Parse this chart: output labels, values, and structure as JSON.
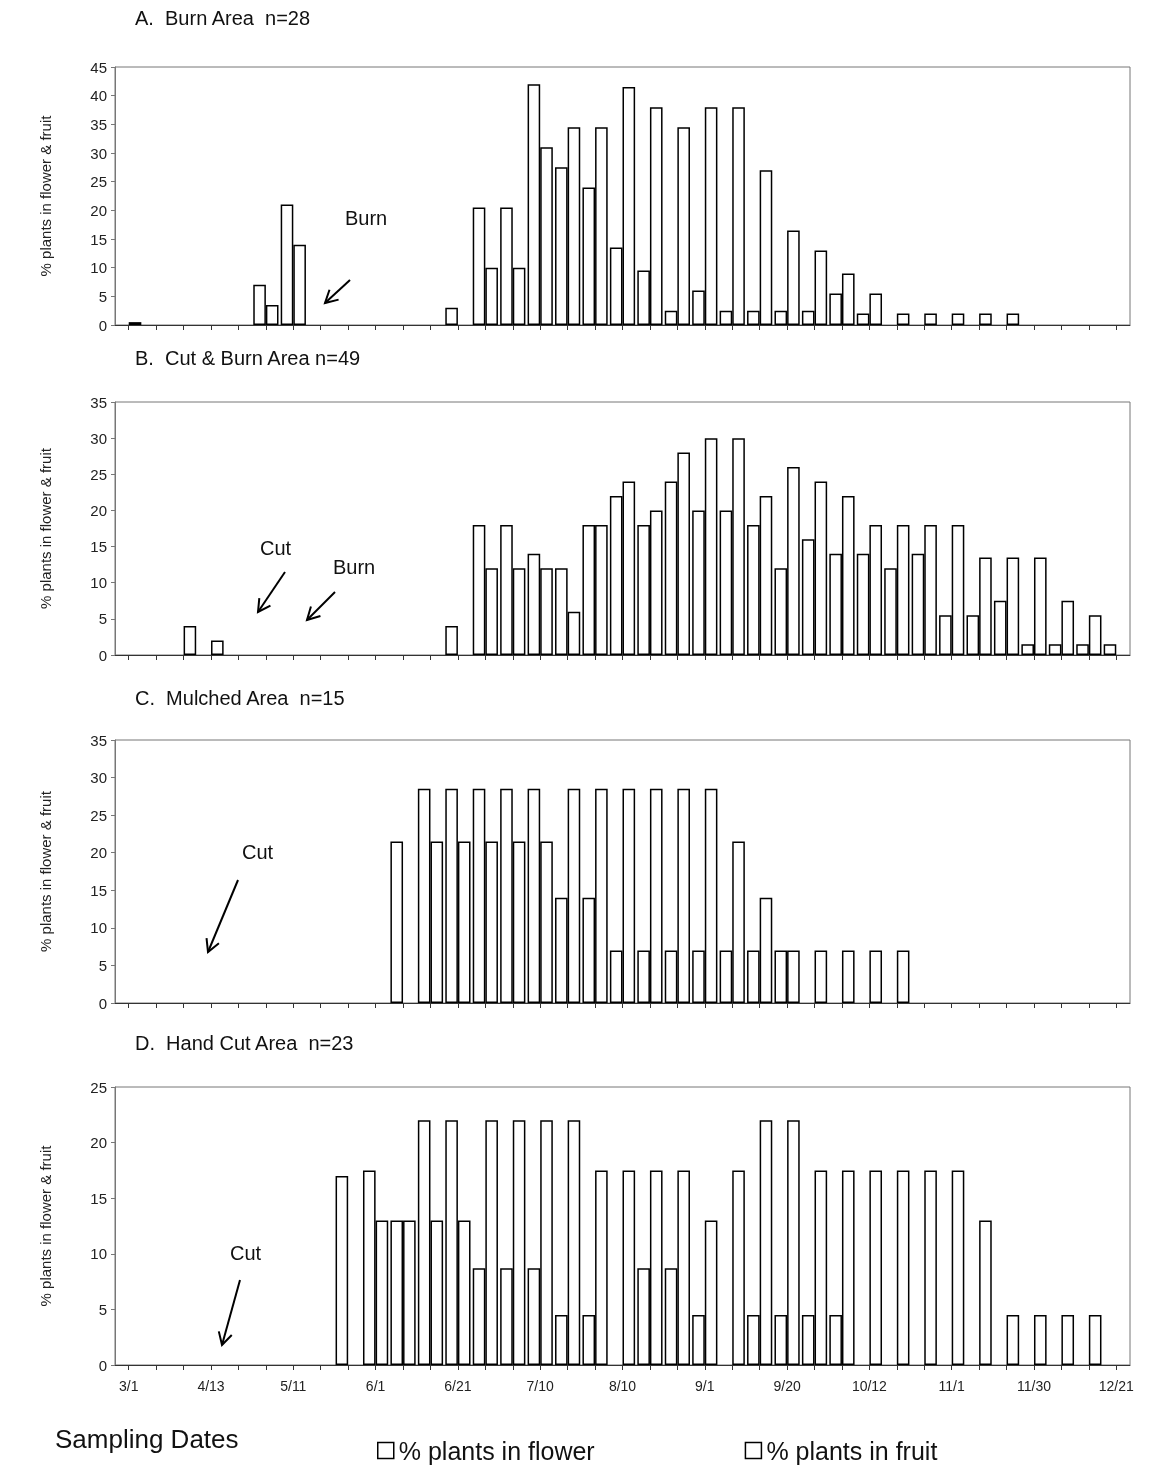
{
  "chart_data": [
    {
      "type": "bar",
      "title": "A.  Burn Area  n=28",
      "ylabel": "% plants in flower & fruit",
      "categories": [
        null,
        null,
        null,
        null,
        null,
        null,
        null,
        null,
        null,
        null,
        null,
        null,
        null,
        null,
        null,
        null,
        null,
        null,
        null,
        null,
        null,
        null,
        null,
        null,
        null,
        null,
        null,
        null,
        null,
        null,
        null,
        null,
        null,
        null,
        null,
        null,
        null
      ],
      "series": [
        {
          "color": "#ffffff",
          "values": [
            null,
            null,
            null,
            null,
            null,
            7,
            21,
            null,
            null,
            null,
            null,
            null,
            3,
            20.5,
            20.5,
            42,
            27.5,
            24,
            13.5,
            9.5,
            2.5,
            6,
            2.5,
            2.5,
            2.5,
            2.5,
            5.5,
            2,
            null,
            null,
            null,
            null,
            null,
            null,
            null,
            null,
            null
          ]
        },
        {
          "color": "#ffffff",
          "values": [
            0.5,
            null,
            null,
            null,
            null,
            3.5,
            14,
            null,
            null,
            null,
            null,
            null,
            null,
            10,
            10,
            31,
            34.5,
            34.5,
            41.5,
            38,
            34.5,
            38,
            38,
            27,
            16.5,
            13,
            9,
            5.5,
            2,
            2,
            2,
            2,
            2,
            null,
            null,
            null,
            null
          ]
        }
      ],
      "ylim": [
        0,
        45
      ],
      "yticks": [
        0,
        5,
        10,
        15,
        20,
        25,
        30,
        35,
        40,
        45
      ],
      "grid": false,
      "legend": false,
      "tick_labels": "y",
      "annotations": [
        "Burn"
      ]
    },
    {
      "type": "bar",
      "title": "B.  Cut & Burn Area n=49",
      "ylabel": "% plants in flower & fruit",
      "categories": [
        null,
        null,
        null,
        null,
        null,
        null,
        null,
        null,
        null,
        null,
        null,
        null,
        null,
        null,
        null,
        null,
        null,
        null,
        null,
        null,
        null,
        null,
        null,
        null,
        null,
        null,
        null,
        null,
        null,
        null,
        null,
        null,
        null,
        null,
        null,
        null,
        null
      ],
      "series": [
        {
          "color": "#ffffff",
          "values": [
            null,
            null,
            null,
            null,
            null,
            null,
            null,
            null,
            null,
            null,
            null,
            null,
            4,
            18,
            18,
            14,
            12,
            18,
            22,
            18,
            24,
            20,
            20,
            18,
            12,
            16,
            14,
            14,
            12,
            14,
            5.5,
            5.5,
            7.5,
            1.5,
            1.5,
            1.5,
            1.5
          ]
        },
        {
          "color": "#ffffff",
          "values": [
            null,
            null,
            4,
            2,
            null,
            null,
            null,
            null,
            null,
            null,
            null,
            null,
            null,
            12,
            12,
            12,
            6,
            18,
            24,
            20,
            28,
            30,
            30,
            22,
            26,
            24,
            22,
            18,
            18,
            18,
            18,
            13.5,
            13.5,
            13.5,
            7.5,
            5.5,
            null
          ]
        }
      ],
      "ylim": [
        0,
        35
      ],
      "yticks": [
        0,
        5,
        10,
        15,
        20,
        25,
        30,
        35
      ],
      "grid": false,
      "legend": false,
      "tick_labels": "y",
      "annotations": [
        "Cut",
        "Burn"
      ]
    },
    {
      "type": "bar",
      "title": "C.  Mulched Area  n=15",
      "ylabel": "% plants in flower & fruit",
      "categories": [
        null,
        null,
        null,
        null,
        null,
        null,
        null,
        null,
        null,
        null,
        null,
        null,
        null,
        null,
        null,
        null,
        null,
        null,
        null,
        null,
        null,
        null,
        null,
        null,
        null,
        null,
        null,
        null,
        null,
        null,
        null,
        null,
        null,
        null,
        null,
        null,
        null
      ],
      "series": [
        {
          "color": "#ffffff",
          "values": [
            null,
            null,
            null,
            null,
            null,
            null,
            null,
            null,
            null,
            null,
            21.5,
            28.5,
            28.5,
            28.5,
            28.5,
            28.5,
            14,
            14,
            7,
            7,
            7,
            7,
            7,
            7,
            7,
            null,
            null,
            null,
            null,
            null,
            null,
            null,
            null,
            null,
            null,
            null,
            null
          ]
        },
        {
          "color": "#ffffff",
          "values": [
            null,
            null,
            null,
            null,
            null,
            null,
            null,
            null,
            null,
            null,
            null,
            21.5,
            21.5,
            21.5,
            21.5,
            21.5,
            28.5,
            28.5,
            28.5,
            28.5,
            28.5,
            28.5,
            21.5,
            14,
            7,
            7,
            7,
            7,
            7,
            null,
            null,
            null,
            null,
            null,
            null,
            null,
            null
          ]
        }
      ],
      "ylim": [
        0,
        35
      ],
      "yticks": [
        0,
        5,
        10,
        15,
        20,
        25,
        30,
        35
      ],
      "grid": false,
      "legend": false,
      "tick_labels": "y",
      "annotations": [
        "Cut"
      ]
    },
    {
      "type": "bar",
      "title": "D.  Hand Cut Area  n=23",
      "ylabel": "% plants in flower & fruit",
      "xlabel": "Sampling Dates",
      "categories": [
        "3/1",
        null,
        null,
        "4/13",
        null,
        null,
        "5/11",
        null,
        null,
        "6/1",
        null,
        null,
        "6/21",
        null,
        null,
        "7/10",
        null,
        null,
        "8/10",
        null,
        null,
        "9/1",
        null,
        null,
        "9/20",
        null,
        null,
        "10/12",
        null,
        null,
        "11/1",
        null,
        null,
        "11/30",
        null,
        null,
        "12/21"
      ],
      "series": [
        {
          "name": "% plants in flower",
          "color": "#ffffff",
          "values": [
            null,
            null,
            null,
            null,
            null,
            null,
            null,
            null,
            17,
            17.5,
            13,
            22,
            22,
            8.7,
            8.7,
            8.7,
            4.5,
            4.5,
            null,
            8.7,
            8.7,
            4.5,
            null,
            4.5,
            4.5,
            4.5,
            4.5,
            null,
            null,
            null,
            null,
            null,
            null,
            null,
            null,
            null,
            null
          ]
        },
        {
          "name": "% plants in fruit",
          "color": "#ffffff",
          "values": [
            null,
            null,
            null,
            null,
            null,
            null,
            null,
            null,
            null,
            13,
            13,
            13,
            13,
            22,
            22,
            22,
            22,
            17.5,
            17.5,
            17.5,
            17.5,
            13,
            17.5,
            22,
            22,
            17.5,
            17.5,
            17.5,
            17.5,
            17.5,
            17.5,
            13,
            4.5,
            4.5,
            4.5,
            4.5,
            null
          ]
        }
      ],
      "ylim": [
        0,
        25
      ],
      "yticks": [
        0,
        5,
        10,
        15,
        20,
        25
      ],
      "grid": false,
      "legend": "bottom",
      "annotations": [
        "Cut"
      ]
    }
  ]
}
